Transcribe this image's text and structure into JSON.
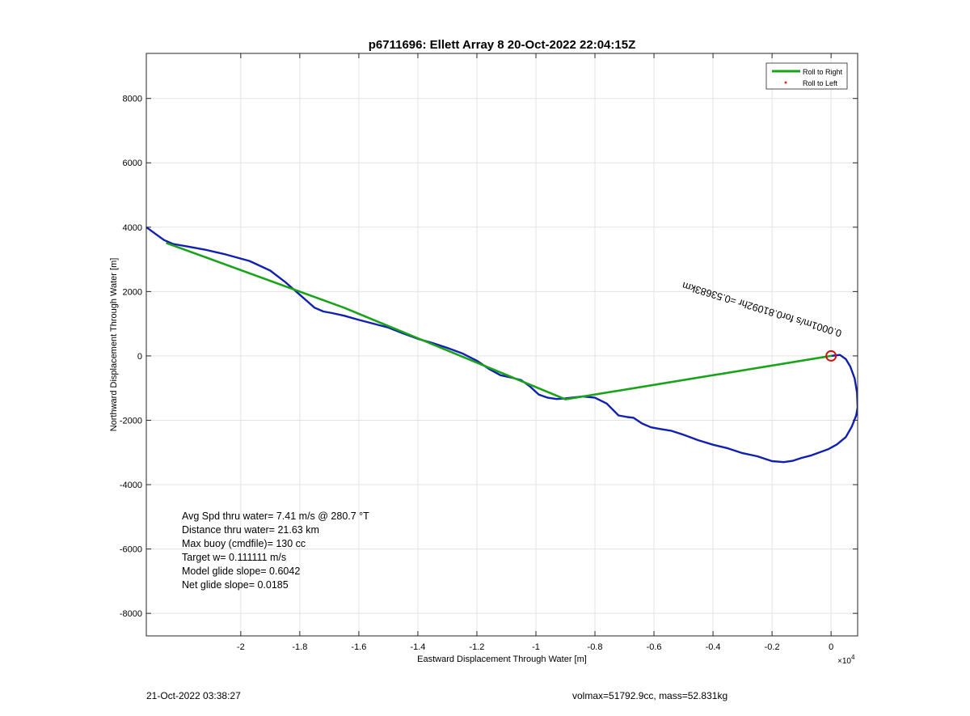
{
  "chart_data": {
    "type": "line",
    "title": "p6711696: Ellett Array 8 20-Oct-2022 22:04:15Z",
    "xlabel": "Eastward Displacement Through Water [m]",
    "ylabel": "Northward Displacement Through Water [m]",
    "x_exponent_label": "×10",
    "x_exponent_power": "4",
    "xlim": [
      -23200,
      900
    ],
    "ylim": [
      -8700,
      9400
    ],
    "x_ticks": [
      -20000,
      -18000,
      -16000,
      -14000,
      -12000,
      -10000,
      -8000,
      -6000,
      -4000,
      -2000,
      0
    ],
    "x_tick_labels": [
      "-2",
      "-1.8",
      "-1.6",
      "-1.4",
      "-1.2",
      "-1",
      "-0.8",
      "-0.6",
      "-0.4",
      "-0.2",
      "0"
    ],
    "y_ticks": [
      -8000,
      -6000,
      -4000,
      -2000,
      0,
      2000,
      4000,
      6000,
      8000
    ],
    "y_tick_labels": [
      "-8000",
      "-6000",
      "-4000",
      "-2000",
      "0",
      "2000",
      "4000",
      "6000",
      "8000"
    ],
    "grid": true,
    "legend_position": "top-right",
    "legend": [
      {
        "label": "Roll to Right",
        "color": "#1aa31a",
        "marker": "line"
      },
      {
        "label": "Roll to Left",
        "color": "#e8281e",
        "marker": "dot"
      }
    ],
    "series": [
      {
        "name": "Roll to Right",
        "color": "#1aa31a",
        "x": [
          -22500,
          -16500,
          -9000,
          0
        ],
        "y": [
          3500,
          1500,
          -1350,
          0
        ]
      },
      {
        "color": "#1020b0",
        "x": [
          -23200,
          -22900,
          -22600,
          -22300,
          -21800,
          -21200,
          -20500,
          -19700,
          -19000,
          -18500,
          -18000,
          -17500,
          -17200,
          -16900,
          -16500,
          -16000,
          -15500,
          -15000,
          -14500,
          -14000,
          -13500,
          -13000,
          -12500,
          -12000,
          -11600,
          -11200,
          -10800,
          -10500,
          -10200,
          -9900,
          -9600,
          -9300,
          -9000,
          -8700,
          -8400,
          -8000,
          -7600,
          -7200,
          -6900,
          -6700,
          -6400,
          -6100,
          -5800,
          -5400,
          -5000,
          -4500,
          -4000,
          -3500,
          -3000,
          -2500,
          -2000,
          -1600,
          -1300,
          -1000,
          -700,
          -400,
          -100,
          200,
          500,
          700,
          850,
          900,
          880,
          800,
          650,
          500,
          300,
          100,
          0
        ],
        "y": [
          4000,
          3800,
          3600,
          3480,
          3400,
          3300,
          3150,
          2950,
          2650,
          2300,
          1900,
          1500,
          1380,
          1330,
          1250,
          1120,
          1000,
          880,
          700,
          530,
          400,
          250,
          80,
          -150,
          -400,
          -600,
          -680,
          -750,
          -950,
          -1200,
          -1300,
          -1340,
          -1320,
          -1290,
          -1260,
          -1300,
          -1480,
          -1850,
          -1900,
          -1920,
          -2100,
          -2220,
          -2270,
          -2330,
          -2450,
          -2620,
          -2760,
          -2870,
          -3020,
          -3120,
          -3270,
          -3300,
          -3260,
          -3170,
          -3100,
          -3000,
          -2900,
          -2750,
          -2520,
          -2200,
          -1850,
          -1600,
          -1150,
          -700,
          -330,
          -100,
          30,
          10,
          0
        ]
      }
    ],
    "end_marker": {
      "x": 0,
      "y": 0,
      "color": "#cc1111"
    },
    "annotation": {
      "text": "0.0001m/s for0.81092hr =0.53683km",
      "x": -5000,
      "y": 2300,
      "rotation_deg": 197
    },
    "stats": [
      "Avg Spd thru water=  7.41 m/s @ 280.7 °T",
      "Distance thru water= 21.63 km",
      "Max buoy (cmdfile)= 130 cc",
      "Target w= 0.111111 m/s",
      "Model glide slope= 0.6042",
      "Net glide slope= 0.0185"
    ]
  },
  "footer": {
    "timestamp": "21-Oct-2022 03:38:27",
    "summary": "volmax=51792.9cc, mass=52.831kg"
  }
}
